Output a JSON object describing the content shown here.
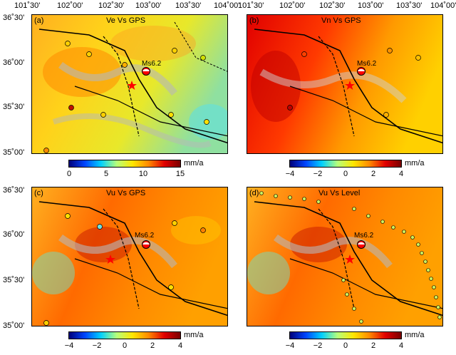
{
  "x_ticks": [
    "101˚30'",
    "102˚00'",
    "102˚30'",
    "103˚00'",
    "103˚30'",
    "104˚00'"
  ],
  "y_ticks_top": [
    "36˚30'",
    "36˚00'",
    "35˚30'",
    "35˚00'"
  ],
  "y_ticks_bottom": [
    "36˚30'",
    "36˚00'",
    "35˚30'",
    "35˚00'"
  ],
  "earthquake_label": "Ms6.2",
  "unit": "mm/a",
  "panels": [
    {
      "label": "(a)",
      "title": "Ve Vs GPS",
      "colorbar_ticks": [
        "0",
        "5",
        "10",
        "15"
      ]
    },
    {
      "label": "(b)",
      "title": "Vn Vs GPS",
      "colorbar_ticks": [
        "−4",
        "−2",
        "0",
        "2",
        "4"
      ]
    },
    {
      "label": "(c)",
      "title": "Vu Vs GPS",
      "colorbar_ticks": [
        "−4",
        "−2",
        "0",
        "2",
        "4"
      ]
    },
    {
      "label": "(d)",
      "title": "Vu Vs Level",
      "colorbar_ticks": [
        "−4",
        "−2",
        "0",
        "2",
        "4"
      ]
    }
  ],
  "colors": {
    "colormap": [
      "#00007a",
      "#0045ff",
      "#00d0ff",
      "#b6ff7a",
      "#ffe600",
      "#ff8a00",
      "#e10000",
      "#7a0000"
    ],
    "epicenter": "#ff0000",
    "fault": "#000000"
  }
}
